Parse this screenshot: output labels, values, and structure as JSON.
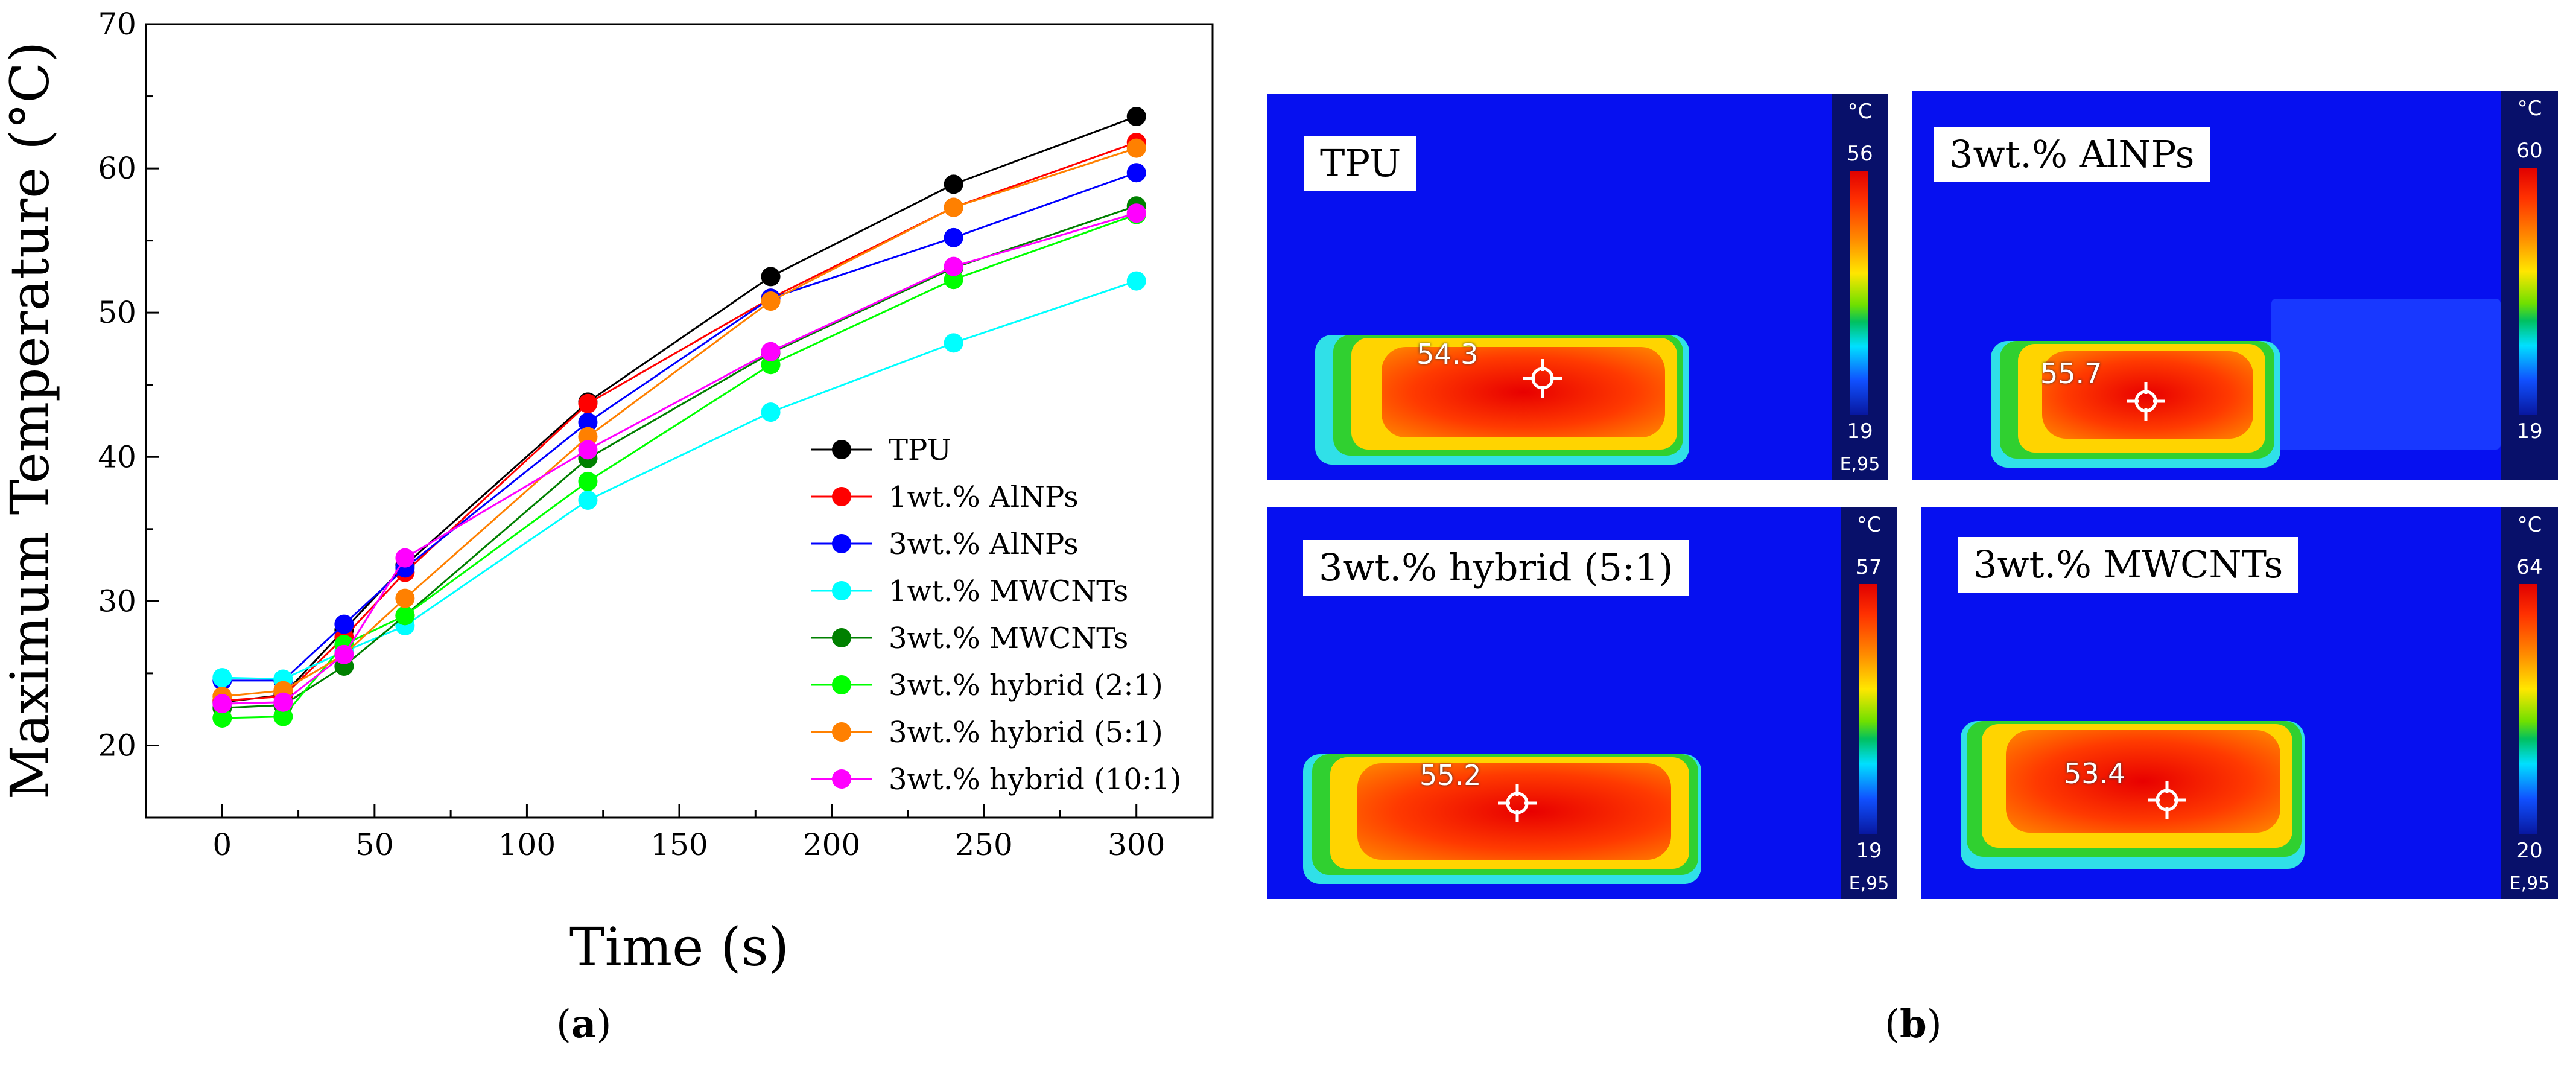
{
  "chart_data": {
    "type": "line",
    "title": "",
    "xlabel": "Time (s)",
    "ylabel": "Maximum Temperature (°C)",
    "xlim": [
      -25,
      325
    ],
    "ylim": [
      15,
      70
    ],
    "x_ticks": [
      0,
      50,
      100,
      150,
      200,
      250,
      300
    ],
    "y_ticks": [
      20,
      30,
      40,
      50,
      60,
      70
    ],
    "legend_position": "lower-right",
    "x": [
      0,
      20,
      40,
      60,
      120,
      180,
      240,
      300
    ],
    "series": [
      {
        "name": "TPU",
        "color": "#000000",
        "values": [
          23.0,
          23.5,
          28.0,
          32.5,
          43.8,
          52.5,
          58.9,
          63.6
        ]
      },
      {
        "name": "1wt.% AlNPs",
        "color": "#ff0000",
        "values": [
          23.1,
          23.4,
          27.5,
          32.0,
          43.7,
          51.0,
          57.3,
          61.8
        ]
      },
      {
        "name": "3wt.% AlNPs",
        "color": "#0000ff",
        "values": [
          24.5,
          24.5,
          28.4,
          32.3,
          42.4,
          51.0,
          55.2,
          59.7
        ]
      },
      {
        "name": "1wt.% MWCNTs",
        "color": "#00ffff",
        "values": [
          24.7,
          24.6,
          26.5,
          28.3,
          37.0,
          43.1,
          47.9,
          52.2
        ]
      },
      {
        "name": "3wt.% MWCNTs",
        "color": "#008000",
        "values": [
          22.6,
          22.8,
          25.5,
          29.0,
          39.9,
          47.2,
          53.1,
          57.4
        ]
      },
      {
        "name": "3wt.% hybrid (2:1)",
        "color": "#00ff00",
        "values": [
          21.9,
          22.0,
          27.0,
          29.0,
          38.3,
          46.4,
          52.3,
          56.8
        ]
      },
      {
        "name": "3wt.% hybrid (5:1)",
        "color": "#ff8000",
        "values": [
          23.4,
          23.8,
          26.3,
          30.2,
          41.4,
          50.8,
          57.3,
          61.4
        ]
      },
      {
        "name": "3wt.% hybrid (10:1)",
        "color": "#ff00ff",
        "values": [
          22.9,
          23.0,
          26.3,
          33.0,
          40.5,
          47.3,
          53.2,
          56.9
        ]
      }
    ]
  },
  "panel_labels": {
    "a": "a",
    "b": "b"
  },
  "thermal_images": [
    {
      "label": "TPU",
      "scale_unit": "°C",
      "scale_max": "56",
      "scale_min": "19",
      "emissivity": "E,95",
      "readout": "54.3"
    },
    {
      "label": "3wt.% AlNPs",
      "scale_unit": "°C",
      "scale_max": "60",
      "scale_min": "19",
      "emissivity": "",
      "readout": "55.7"
    },
    {
      "label": "3wt.% hybrid (5:1)",
      "scale_unit": "°C",
      "scale_max": "57",
      "scale_min": "19",
      "emissivity": "E,95",
      "readout": "55.2"
    },
    {
      "label": "3wt.% MWCNTs",
      "scale_unit": "°C",
      "scale_max": "64",
      "scale_min": "20",
      "emissivity": "E,95",
      "readout": "53.4"
    }
  ]
}
